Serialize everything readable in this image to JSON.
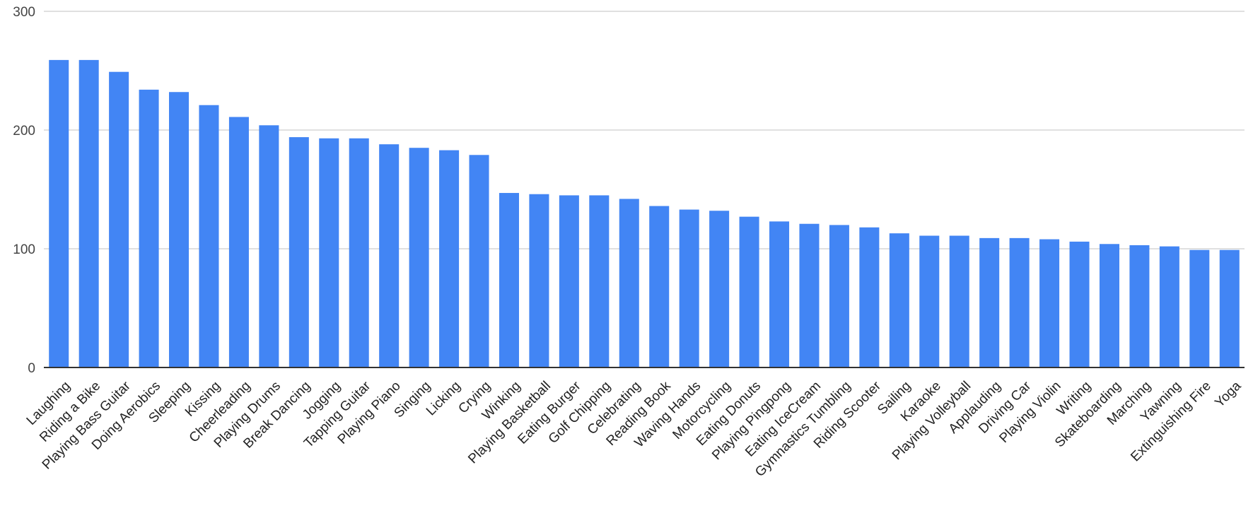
{
  "chart_data": {
    "type": "bar",
    "title": "",
    "xlabel": "",
    "ylabel": "",
    "ylim": [
      0,
      300
    ],
    "yticks": [
      0,
      100,
      200,
      300
    ],
    "grid": true,
    "bar_color": "#4285f4",
    "categories": [
      "Laughing",
      "Riding a Bike",
      "Playing Bass Guitar",
      "Doing Aerobics",
      "Sleeping",
      "Kissing",
      "Cheerleading",
      "Playing Drums",
      "Break Dancing",
      "Jogging",
      "Tapping Guitar",
      "Playing Piano",
      "Singing",
      "Licking",
      "Crying",
      "Winking",
      "Playing Basketball",
      "Eating Burger",
      "Golf Chipping",
      "Celebrating",
      "Reading Book",
      "Waving Hands",
      "Motorcycling",
      "Eating Donuts",
      "Playing Pingpong",
      "Eating IceCream",
      "Gymnastics Tumbling",
      "Riding Scooter",
      "Sailing",
      "Karaoke",
      "Playing Volleyball",
      "Applauding",
      "Driving Car",
      "Playing Violin",
      "Writing",
      "Skateboarding",
      "Marching",
      "Yawning",
      "Extinguishing Fire",
      "Yoga"
    ],
    "values": [
      259,
      259,
      249,
      234,
      232,
      221,
      211,
      204,
      194,
      193,
      193,
      188,
      185,
      183,
      179,
      147,
      146,
      145,
      145,
      142,
      136,
      133,
      132,
      127,
      123,
      121,
      120,
      118,
      113,
      111,
      111,
      109,
      109,
      108,
      106,
      104,
      103,
      102,
      99,
      99
    ]
  }
}
